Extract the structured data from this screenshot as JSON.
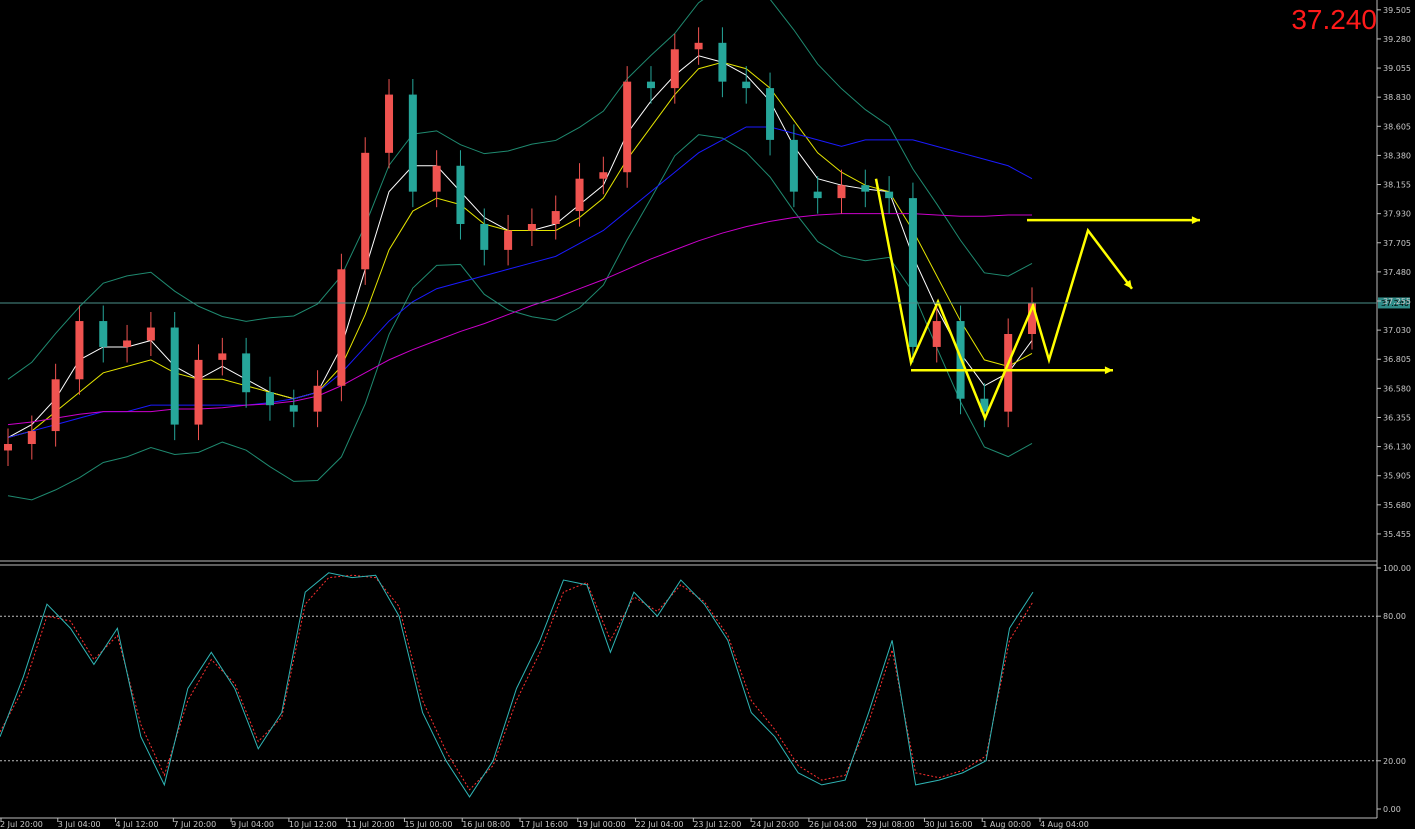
{
  "symbol_last_price": "37.240",
  "price_box_label": "37.240",
  "colors": {
    "background": "#000000",
    "bull_candle": "#ef5350",
    "bear_candle": "#26a69a",
    "bollinger": "#1f8a70",
    "ma_fast": "#ffffff",
    "ma_mid": "#e5e500",
    "ma_slow": "#1a1aff",
    "ma_long": "#cc00cc",
    "pattern_arrows": "#ffff00",
    "stoch_main": "#2fb5b5",
    "stoch_signal": "#ff3030",
    "last_price_text": "#ff0000"
  },
  "chart_data": [
    {
      "type": "line",
      "y_ticks": [
        "39.505",
        "39.280",
        "39.055",
        "38.830",
        "38.605",
        "38.380",
        "38.155",
        "37.930",
        "37.705",
        "37.480",
        "37.255",
        "37.030",
        "36.805",
        "36.580",
        "36.355",
        "36.130",
        "35.905",
        "35.680",
        "35.455"
      ],
      "ylim": [
        35.3,
        39.55
      ],
      "x_tick_labels": [
        "2 Jul 20:00",
        "3 Jul 04:00",
        "4 Jul 12:00",
        "7 Jul 20:00",
        "9 Jul 04:00",
        "10 Jul 12:00",
        "11 Jul 20:00",
        "15 Jul 00:00",
        "16 Jul 08:00",
        "17 Jul 16:00",
        "19 Jul 00:00",
        "22 Jul 04:00",
        "23 Jul 12:00",
        "24 Jul 20:00",
        "26 Jul 04:00",
        "29 Jul 08:00",
        "30 Jul 16:00",
        "1 Aug 00:00",
        "4 Aug 04:00"
      ],
      "current_price": 37.24,
      "series": [
        {
          "values": [
            36.15,
            36.25,
            36.65,
            37.1,
            36.9,
            36.95,
            37.05,
            36.3,
            36.8,
            36.85,
            36.55,
            36.45,
            36.4,
            36.6,
            37.5,
            38.4,
            38.85,
            38.1,
            38.3,
            37.85,
            37.65,
            37.8,
            37.85,
            37.95,
            38.2,
            38.25,
            38.95,
            38.9,
            39.2,
            39.25,
            38.95,
            38.9,
            38.5,
            38.1,
            38.05,
            38.15,
            38.1,
            38.05,
            36.9,
            37.1,
            36.5,
            36.4,
            37.0,
            37.24
          ]
        },
        {
          "values": [
            36.2,
            36.3,
            36.5,
            36.8,
            36.9,
            36.9,
            36.95,
            36.75,
            36.65,
            36.75,
            36.65,
            36.55,
            36.5,
            36.55,
            36.9,
            37.5,
            38.1,
            38.3,
            38.3,
            38.1,
            37.9,
            37.8,
            37.8,
            37.85,
            38.0,
            38.15,
            38.55,
            38.8,
            39.0,
            39.15,
            39.1,
            39.0,
            38.8,
            38.45,
            38.2,
            38.15,
            38.12,
            38.1,
            37.6,
            37.2,
            36.85,
            36.6,
            36.7,
            36.95
          ]
        },
        {
          "values": [
            36.2,
            36.25,
            36.4,
            36.55,
            36.7,
            36.75,
            36.8,
            36.7,
            36.65,
            36.65,
            36.6,
            36.55,
            36.5,
            36.55,
            36.75,
            37.15,
            37.65,
            37.95,
            38.05,
            38.0,
            37.85,
            37.8,
            37.8,
            37.8,
            37.9,
            38.05,
            38.35,
            38.6,
            38.85,
            39.05,
            39.1,
            39.05,
            38.9,
            38.65,
            38.4,
            38.25,
            38.15,
            38.1,
            37.8,
            37.45,
            37.1,
            36.8,
            36.75,
            36.85
          ]
        },
        {
          "values": [
            36.2,
            36.25,
            36.3,
            36.35,
            36.4,
            36.4,
            36.45,
            36.45,
            36.45,
            36.45,
            36.45,
            36.47,
            36.5,
            36.55,
            36.7,
            36.9,
            37.1,
            37.25,
            37.35,
            37.4,
            37.45,
            37.5,
            37.55,
            37.6,
            37.7,
            37.8,
            37.95,
            38.1,
            38.25,
            38.4,
            38.5,
            38.6,
            38.6,
            38.55,
            38.5,
            38.45,
            38.5,
            38.5,
            38.5,
            38.45,
            38.4,
            38.35,
            38.3,
            38.2
          ]
        },
        {
          "values": [
            36.3,
            36.32,
            36.35,
            36.38,
            36.4,
            36.4,
            36.4,
            36.42,
            36.42,
            36.43,
            36.45,
            36.46,
            36.48,
            36.52,
            36.6,
            36.7,
            36.8,
            36.88,
            36.95,
            37.02,
            37.08,
            37.15,
            37.22,
            37.28,
            37.35,
            37.42,
            37.5,
            37.58,
            37.65,
            37.72,
            37.78,
            37.83,
            37.87,
            37.9,
            37.92,
            37.93,
            37.93,
            37.93,
            37.93,
            37.92,
            37.91,
            37.91,
            37.92,
            37.92
          ]
        }
      ]
    },
    {
      "type": "line",
      "y_ticks": [
        "100.00",
        "80.00",
        "20.00",
        "0.00"
      ],
      "ylim": [
        0,
        100
      ],
      "levels": [
        80,
        20
      ],
      "series": [
        {
          "values": [
            30,
            55,
            85,
            75,
            60,
            75,
            30,
            10,
            50,
            65,
            50,
            25,
            40,
            90,
            98,
            96,
            97,
            80,
            40,
            20,
            5,
            20,
            50,
            70,
            95,
            93,
            65,
            90,
            80,
            95,
            85,
            70,
            40,
            30,
            15,
            10,
            12,
            40,
            70,
            10,
            12,
            15,
            20,
            75,
            90
          ]
        },
        {
          "values": [
            32,
            50,
            80,
            78,
            62,
            72,
            35,
            14,
            45,
            62,
            52,
            28,
            38,
            85,
            96,
            97,
            96,
            84,
            45,
            24,
            8,
            18,
            45,
            65,
            90,
            94,
            70,
            88,
            82,
            93,
            86,
            72,
            45,
            33,
            18,
            12,
            14,
            36,
            66,
            15,
            13,
            16,
            22,
            70,
            86
          ]
        }
      ]
    }
  ]
}
